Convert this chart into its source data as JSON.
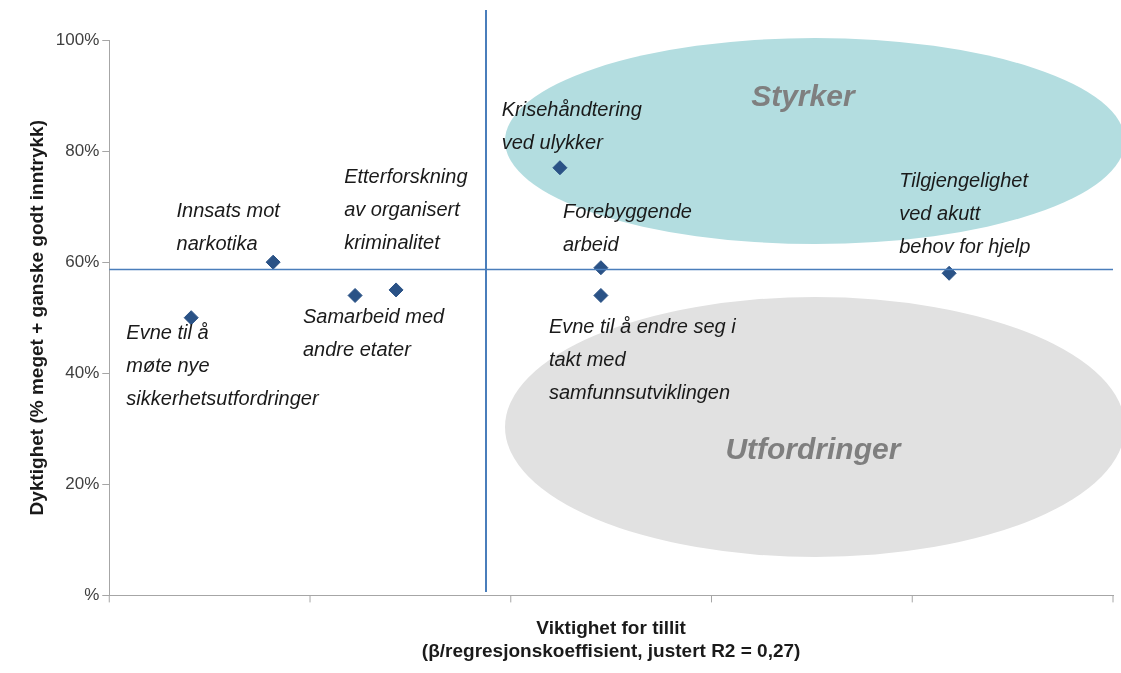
{
  "chart_data": {
    "type": "scatter",
    "xlabel": "Viktighet for tillit\n(β/regresjonskoeffisient, justert R2 = 0,27)",
    "ylabel": "Dyktighet (% meget + ganske godt inntrykk)",
    "categories": [
      null,
      null,
      null,
      null,
      null,
      null,
      null,
      null,
      null,
      null,
      null,
      null,
      null,
      null,
      null,
      null,
      null,
      null,
      null,
      null,
      null,
      null,
      null,
      null,
      null,
      null,
      null,
      null,
      null,
      null,
      null,
      null,
      null,
      null,
      null,
      null,
      null,
      null,
      null,
      null,
      null,
      null,
      null,
      null,
      null,
      null,
      null,
      null,
      null,
      null
    ],
    "series": [
      {
        "color": "#2a5286",
        "values": [
          null,
          null,
          null,
          null,
          50,
          null,
          null,
          null,
          60,
          null,
          null,
          null,
          54,
          null,
          55,
          null,
          null,
          null,
          null,
          null,
          null,
          null,
          77,
          null,
          59,
          null,
          null,
          null,
          null,
          null,
          null,
          null,
          null,
          null,
          null,
          null,
          null,
          null,
          null,
          null,
          null,
          58,
          null,
          null,
          null,
          null,
          null,
          null,
          null,
          null
        ]
      },
      {
        "color": "#2a5286",
        "values": [
          null,
          null,
          null,
          null,
          null,
          null,
          null,
          null,
          null,
          null,
          null,
          null,
          null,
          null,
          null,
          null,
          null,
          null,
          null,
          null,
          null,
          null,
          null,
          null,
          54,
          null,
          null,
          null,
          null,
          null,
          null,
          null,
          null,
          null,
          null,
          null,
          null,
          null,
          null,
          null,
          null,
          null,
          null,
          null,
          null,
          null,
          null,
          null,
          null,
          null
        ]
      }
    ],
    "ylim": [
      0,
      100
    ],
    "yticks": [
      {
        "value": 0,
        "label": "%"
      },
      {
        "value": 20,
        "label": "20%"
      },
      {
        "value": 40,
        "label": "40%"
      },
      {
        "value": 60,
        "label": "60%"
      },
      {
        "value": 80,
        "label": "80%"
      },
      {
        "value": 100,
        "label": "100%"
      }
    ],
    "tick_labels": "y",
    "legend": false,
    "marker": "diamond",
    "ref_lines": [
      {
        "axis": "y",
        "value": 58.7,
        "color": "#4a7ebb"
      }
    ],
    "annotations": [
      "Evne til å\nmøte nye\nsikkerhetsutfordringer",
      "Innsats mot\nnarkotika",
      "Samarbeid med\nandre etater",
      "Etterforskning\nav organisert\nkriminalitet",
      "Krisehåndtering\nved ulykker",
      "Forebyggende\narbeid",
      "Evne til å endre seg i\ntakt med\nsamfunnsutviklingen",
      "Tilgjengelighet\nved akutt\nbehov for hjelp",
      "Styrker",
      "Utfordringer"
    ]
  }
}
